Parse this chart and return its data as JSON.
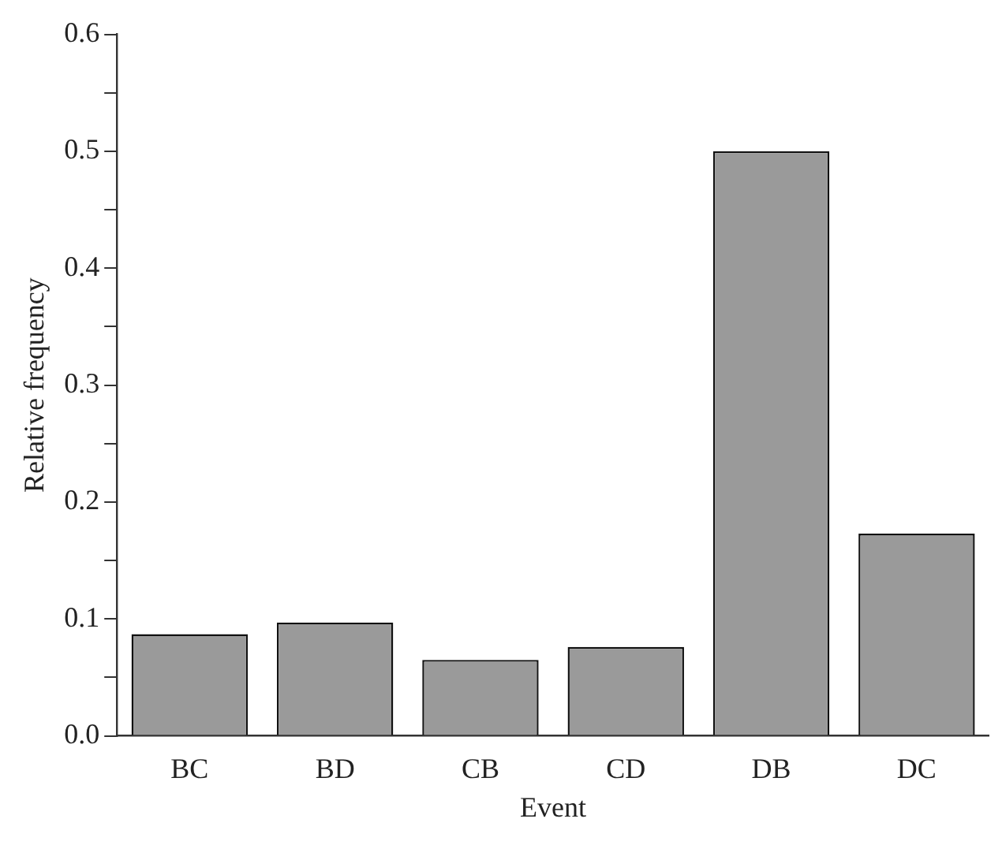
{
  "chart_data": {
    "type": "bar",
    "xlabel": "Event",
    "ylabel": "Relative frequency",
    "categories": [
      "BC",
      "BD",
      "CB",
      "CD",
      "DB",
      "DC"
    ],
    "values": [
      0.087,
      0.097,
      0.065,
      0.076,
      0.5,
      0.173
    ],
    "color": "#9a9a9a",
    "ylim": [
      0,
      0.6
    ],
    "yticks": [
      {
        "value": 0,
        "label": "0.0"
      },
      {
        "value": 0.05,
        "label": null
      },
      0.1,
      {
        "value": 0.15,
        "label": null
      },
      0.2,
      {
        "value": 0.25,
        "label": null
      },
      0.3,
      {
        "value": 0.35,
        "label": null
      },
      0.4,
      {
        "value": 0.45,
        "label": null
      },
      0.5,
      {
        "value": 0.55,
        "label": null
      },
      0.6
    ],
    "grid": false,
    "legend": false
  }
}
